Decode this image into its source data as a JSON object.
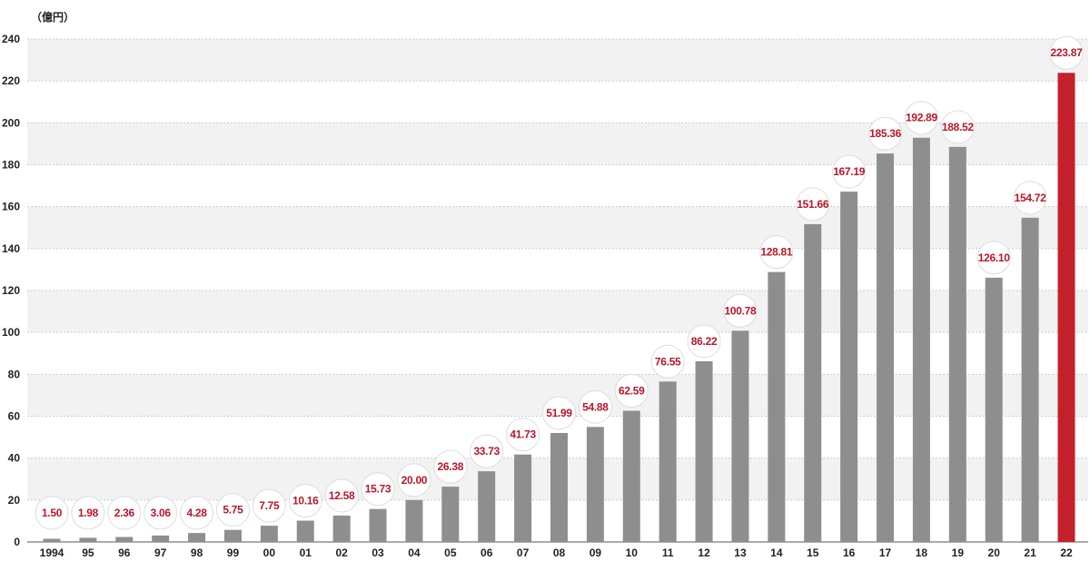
{
  "chart_data": {
    "type": "bar",
    "unit_label": "（億円）",
    "categories": [
      "1994",
      "95",
      "96",
      "97",
      "98",
      "99",
      "00",
      "01",
      "02",
      "03",
      "04",
      "05",
      "06",
      "07",
      "08",
      "09",
      "10",
      "11",
      "12",
      "13",
      "14",
      "15",
      "16",
      "17",
      "18",
      "19",
      "20",
      "21",
      "22"
    ],
    "values": [
      1.5,
      1.98,
      2.36,
      3.06,
      4.28,
      5.75,
      7.75,
      10.16,
      12.58,
      15.73,
      20.0,
      26.38,
      33.73,
      41.73,
      51.99,
      54.88,
      62.59,
      76.55,
      86.22,
      100.78,
      128.81,
      151.66,
      167.19,
      185.36,
      192.89,
      188.52,
      126.1,
      154.72,
      223.87
    ],
    "value_labels": [
      "1.50",
      "1.98",
      "2.36",
      "3.06",
      "4.28",
      "5.75",
      "7.75",
      "10.16",
      "12.58",
      "15.73",
      "20.00",
      "26.38",
      "33.73",
      "41.73",
      "51.99",
      "54.88",
      "62.59",
      "76.55",
      "86.22",
      "100.78",
      "128.81",
      "151.66",
      "167.19",
      "185.36",
      "192.89",
      "188.52",
      "126.10",
      "154.72",
      "223.87"
    ],
    "ylim": [
      0,
      240
    ],
    "yticks": [
      0,
      20,
      40,
      60,
      80,
      100,
      120,
      140,
      160,
      180,
      200,
      220,
      240
    ],
    "grid": true,
    "highlight_index": 28,
    "colors": {
      "bar": "#8e8e8e",
      "highlight_bar": "#c4202b",
      "label_text": "#b7182a",
      "band": "#f2f2f2",
      "gridline": "#cccccc"
    }
  }
}
